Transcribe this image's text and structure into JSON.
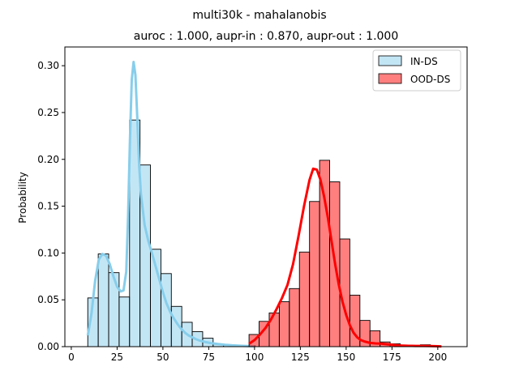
{
  "chart_data": {
    "type": "histogram",
    "title": "multi30k - mahalanobis",
    "subtitle": "auroc : 1.000, aupr-in : 0.870, aupr-out : 1.000",
    "xlabel": "",
    "ylabel": "Probability",
    "xlim": [
      -3.5,
      216
    ],
    "ylim": [
      0,
      0.32
    ],
    "xticks": [
      0,
      25,
      50,
      75,
      100,
      125,
      150,
      175,
      200
    ],
    "yticks": [
      0.0,
      0.05,
      0.1,
      0.15,
      0.2,
      0.25,
      0.3
    ],
    "legend_position": "upper right",
    "series": [
      {
        "name": "IN-DS",
        "color": "#87ceeb",
        "bar_alpha": 0.5,
        "bins": [
          {
            "x0": 9.0,
            "x1": 14.7,
            "value": 0.052
          },
          {
            "x0": 14.7,
            "x1": 20.4,
            "value": 0.099
          },
          {
            "x0": 20.4,
            "x1": 26.1,
            "value": 0.079
          },
          {
            "x0": 26.1,
            "x1": 31.8,
            "value": 0.053
          },
          {
            "x0": 31.8,
            "x1": 37.5,
            "value": 0.242
          },
          {
            "x0": 37.5,
            "x1": 43.2,
            "value": 0.194
          },
          {
            "x0": 43.2,
            "x1": 48.9,
            "value": 0.104
          },
          {
            "x0": 48.9,
            "x1": 54.6,
            "value": 0.078
          },
          {
            "x0": 54.6,
            "x1": 60.3,
            "value": 0.043
          },
          {
            "x0": 60.3,
            "x1": 66.0,
            "value": 0.026
          },
          {
            "x0": 66.0,
            "x1": 71.7,
            "value": 0.016
          },
          {
            "x0": 71.7,
            "x1": 77.4,
            "value": 0.009
          },
          {
            "x0": 77.4,
            "x1": 83.1,
            "value": 0.003
          },
          {
            "x0": 83.1,
            "x1": 88.8,
            "value": 0.002
          },
          {
            "x0": 88.8,
            "x1": 94.5,
            "value": 0.001
          },
          {
            "x0": 94.5,
            "x1": 100.2,
            "value": 0.001
          }
        ],
        "kde": [
          [
            9,
            0.012
          ],
          [
            11,
            0.035
          ],
          [
            13,
            0.07
          ],
          [
            15,
            0.093
          ],
          [
            17,
            0.099
          ],
          [
            19,
            0.097
          ],
          [
            21,
            0.088
          ],
          [
            23,
            0.075
          ],
          [
            25,
            0.064
          ],
          [
            27,
            0.059
          ],
          [
            28.5,
            0.06
          ],
          [
            30,
            0.08
          ],
          [
            31,
            0.14
          ],
          [
            32,
            0.22
          ],
          [
            33,
            0.285
          ],
          [
            34,
            0.304
          ],
          [
            35,
            0.29
          ],
          [
            36,
            0.245
          ],
          [
            37,
            0.195
          ],
          [
            38,
            0.163
          ],
          [
            40,
            0.13
          ],
          [
            42,
            0.113
          ],
          [
            44,
            0.1
          ],
          [
            46,
            0.086
          ],
          [
            48,
            0.072
          ],
          [
            50,
            0.058
          ],
          [
            52,
            0.046
          ],
          [
            54,
            0.037
          ],
          [
            56,
            0.03
          ],
          [
            58,
            0.024
          ],
          [
            60,
            0.019
          ],
          [
            62,
            0.015
          ],
          [
            64,
            0.012
          ],
          [
            66,
            0.01
          ],
          [
            68,
            0.008
          ],
          [
            70,
            0.0065
          ],
          [
            73,
            0.005
          ],
          [
            76,
            0.0038
          ],
          [
            80,
            0.0028
          ],
          [
            84,
            0.002
          ],
          [
            88,
            0.0014
          ],
          [
            92,
            0.001
          ],
          [
            96,
            0.0006
          ],
          [
            100,
            0.0003
          ]
        ]
      },
      {
        "name": "OOD-DS",
        "color": "#ff0000",
        "bar_alpha": 0.5,
        "bins": [
          {
            "x0": 97.0,
            "x1": 102.5,
            "value": 0.013
          },
          {
            "x0": 102.5,
            "x1": 108.0,
            "value": 0.027
          },
          {
            "x0": 108.0,
            "x1": 113.5,
            "value": 0.036
          },
          {
            "x0": 113.5,
            "x1": 119.0,
            "value": 0.048
          },
          {
            "x0": 119.0,
            "x1": 124.5,
            "value": 0.062
          },
          {
            "x0": 124.5,
            "x1": 130.0,
            "value": 0.101
          },
          {
            "x0": 130.0,
            "x1": 135.5,
            "value": 0.155
          },
          {
            "x0": 135.5,
            "x1": 141.0,
            "value": 0.199
          },
          {
            "x0": 141.0,
            "x1": 146.5,
            "value": 0.176
          },
          {
            "x0": 146.5,
            "x1": 152.0,
            "value": 0.115
          },
          {
            "x0": 152.0,
            "x1": 157.5,
            "value": 0.055
          },
          {
            "x0": 157.5,
            "x1": 163.0,
            "value": 0.028
          },
          {
            "x0": 163.0,
            "x1": 168.5,
            "value": 0.017
          },
          {
            "x0": 168.5,
            "x1": 174.0,
            "value": 0.005
          },
          {
            "x0": 174.0,
            "x1": 179.5,
            "value": 0.003
          },
          {
            "x0": 179.5,
            "x1": 185.0,
            "value": 0.001
          },
          {
            "x0": 185.0,
            "x1": 190.5,
            "value": 0.001
          },
          {
            "x0": 190.5,
            "x1": 196.0,
            "value": 0.002
          },
          {
            "x0": 196.0,
            "x1": 201.5,
            "value": 0.001
          },
          {
            "x0": 201.5,
            "x1": 207.0,
            "value": 0.0
          }
        ],
        "kde": [
          [
            97,
            0.003
          ],
          [
            100,
            0.007
          ],
          [
            103,
            0.013
          ],
          [
            106,
            0.02
          ],
          [
            109,
            0.029
          ],
          [
            112,
            0.04
          ],
          [
            115,
            0.052
          ],
          [
            118,
            0.066
          ],
          [
            121,
            0.088
          ],
          [
            124,
            0.118
          ],
          [
            127,
            0.15
          ],
          [
            130,
            0.178
          ],
          [
            132,
            0.19
          ],
          [
            134,
            0.189
          ],
          [
            136,
            0.178
          ],
          [
            138,
            0.16
          ],
          [
            140,
            0.138
          ],
          [
            142,
            0.113
          ],
          [
            144,
            0.088
          ],
          [
            146,
            0.066
          ],
          [
            148,
            0.048
          ],
          [
            150,
            0.034
          ],
          [
            152,
            0.023
          ],
          [
            154,
            0.015
          ],
          [
            156,
            0.01
          ],
          [
            158,
            0.007
          ],
          [
            160,
            0.0055
          ],
          [
            163,
            0.004
          ],
          [
            166,
            0.0035
          ],
          [
            169,
            0.0032
          ],
          [
            172,
            0.0026
          ],
          [
            176,
            0.0018
          ],
          [
            180,
            0.0012
          ],
          [
            184,
            0.0009
          ],
          [
            188,
            0.0008
          ],
          [
            192,
            0.0008
          ],
          [
            196,
            0.0007
          ],
          [
            200,
            0.0004
          ],
          [
            202,
            0.0002
          ]
        ]
      }
    ]
  }
}
